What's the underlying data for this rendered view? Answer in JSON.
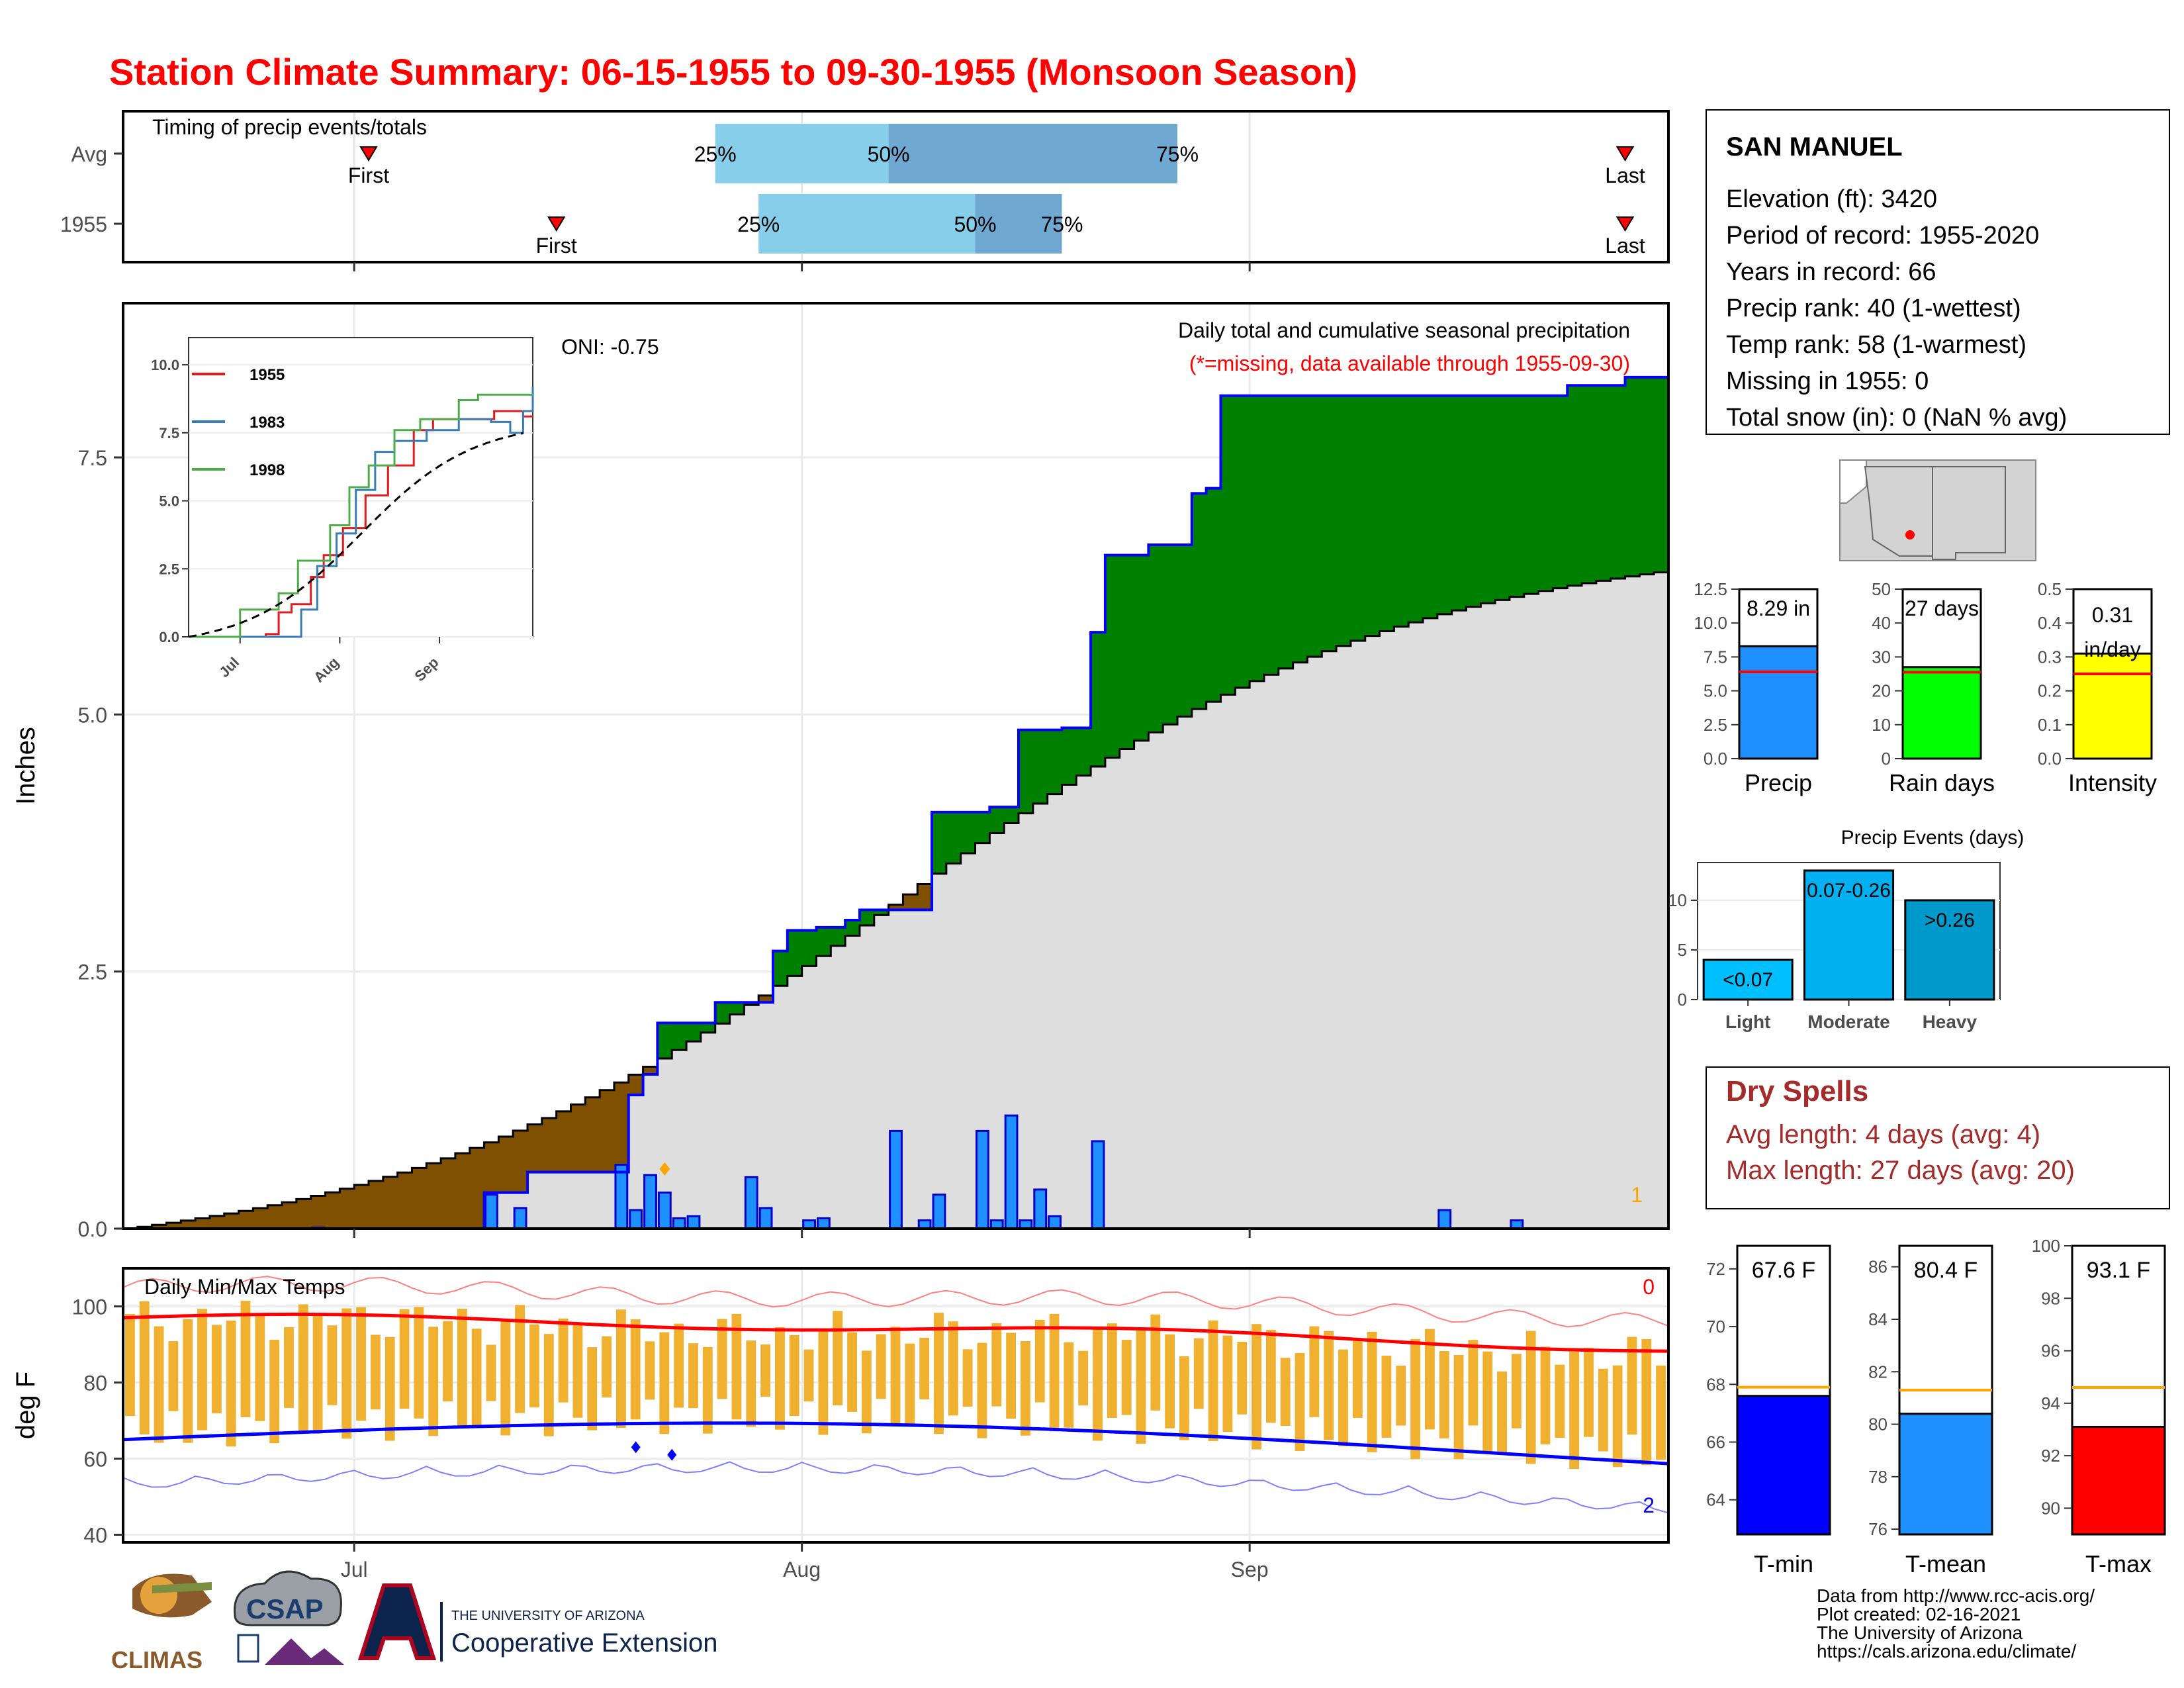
{
  "title": "Station Climate Summary: 06-15-1955 to 09-30-1955 (Monsoon Season)",
  "timing": {
    "label": "Timing of precip events/totals",
    "rows": [
      {
        "name": "Avg",
        "first_day": 17,
        "last_day": 104,
        "p25": 41,
        "p50": 53,
        "p75": 73
      },
      {
        "name": "1955",
        "first_day": 30,
        "last_day": 104,
        "p25": 44,
        "p50": 59,
        "p75": 65
      }
    ],
    "first_label": "First",
    "last_label": "Last",
    "p25_label": "25%",
    "p50_label": "50%",
    "p75_label": "75%"
  },
  "station": {
    "name": "SAN MANUEL",
    "lines": [
      "Elevation (ft): 3420",
      "Period of record: 1955-2020",
      "Years in record: 66",
      "Precip rank: 40 (1-wettest)",
      "Temp rank: 58 (1-warmest)",
      "Missing in 1955: 0",
      "Total snow (in): 0 (NaN % avg)"
    ]
  },
  "precip_panel": {
    "title": "Daily total and cumulative seasonal precipitation",
    "subtitle": "(*=missing, data available through 1955-09-30)",
    "oni": "ONI: -0.75",
    "ylabel": "Inches",
    "y_ticks": [
      "0.0",
      "2.5",
      "5.0",
      "7.5"
    ],
    "corner_count": "1",
    "colors": {
      "above": "#008000",
      "below": "#7f5000",
      "avg_fill": "#dedede",
      "bar": "#1e90ff"
    }
  },
  "inset": {
    "series": [
      {
        "name": "1955",
        "color": "#e41a1c"
      },
      {
        "name": "1983",
        "color": "#377eb8"
      },
      {
        "name": "1998",
        "color": "#4daf4a"
      }
    ],
    "y_ticks": [
      "0.0",
      "2.5",
      "5.0",
      "7.5",
      "10.0"
    ],
    "x_ticks": [
      "Jul",
      "Aug",
      "Sep"
    ]
  },
  "temp_panel": {
    "title": "Daily Min/Max Temps",
    "ylabel": "deg F",
    "y_ticks": [
      "40",
      "60",
      "80",
      "100"
    ],
    "count_max": "0",
    "count_min": "2"
  },
  "x_axis": {
    "ticks": [
      "Jul",
      "Aug",
      "Sep"
    ]
  },
  "gauges": {
    "precip": {
      "label": "Precip",
      "value_text": "8.29 in",
      "value": 8.29,
      "avg": 6.4,
      "ymax": 12.5,
      "ticks": [
        "0.0",
        "2.5",
        "5.0",
        "7.5",
        "10.0",
        "12.5"
      ],
      "color": "#1e90ff"
    },
    "rain_days": {
      "label": "Rain days",
      "value_text": "27 days",
      "value": 27,
      "avg": 25.5,
      "ymax": 50,
      "ticks": [
        "0",
        "10",
        "20",
        "30",
        "40",
        "50"
      ],
      "color": "#00ff00"
    },
    "intensity": {
      "label": "Intensity",
      "value_text": "0.31 in/day",
      "value": 0.31,
      "avg": 0.25,
      "ymax": 0.5,
      "ticks": [
        "0.0",
        "0.1",
        "0.2",
        "0.3",
        "0.4",
        "0.5"
      ],
      "color": "#ffff00"
    }
  },
  "precip_events": {
    "title": "Precip Events (days)",
    "categories": [
      "Light",
      "Moderate",
      "Heavy"
    ],
    "range_labels": [
      "<0.07",
      "0.07-0.26",
      ">0.26"
    ],
    "values": [
      4,
      13,
      10
    ],
    "y_ticks": [
      "0",
      "5",
      "10"
    ],
    "colors": [
      "#00bfff",
      "#00b0f0",
      "#0099cc"
    ]
  },
  "dry_spells": {
    "title": "Dry Spells",
    "avg_line": "Avg length: 4 days (avg: 4)",
    "max_line": "Max length: 27 days (avg: 20)"
  },
  "temp_gauges": {
    "tmin": {
      "label": "T-min",
      "value_text": "67.6 F",
      "value": 67.6,
      "avg": 67.9,
      "ymin": 62.8,
      "ymax": 72.8,
      "ticks": [
        "64",
        "66",
        "68",
        "70",
        "72"
      ],
      "color": "#0000ff"
    },
    "tmean": {
      "label": "T-mean",
      "value_text": "80.4 F",
      "value": 80.4,
      "avg": 81.3,
      "ymin": 75.8,
      "ymax": 86.8,
      "ticks": [
        "76",
        "78",
        "80",
        "82",
        "84",
        "86"
      ],
      "color": "#1e90ff"
    },
    "tmax": {
      "label": "T-max",
      "value_text": "93.1 F",
      "value": 93.1,
      "avg": 94.6,
      "ymin": 89.0,
      "ymax": 100.0,
      "ticks": [
        "90",
        "92",
        "94",
        "96",
        "98",
        "100"
      ],
      "color": "#ff0000"
    }
  },
  "footer": {
    "lines": [
      "Data from http://www.rcc-acis.org/",
      "Plot created: 02-16-2021",
      "The University of Arizona",
      "https://cals.arizona.edu/climate/"
    ],
    "logos": {
      "climas": "CLIMAS",
      "csap": "CSAP",
      "ua_small": "THE UNIVERSITY OF ARIZONA",
      "ua_big": "Cooperative Extension"
    }
  },
  "chart_data": [
    {
      "type": "area",
      "title": "Daily total and cumulative seasonal precipitation",
      "ylabel": "Inches",
      "x_start": "1955-06-15",
      "x_end": "1955-09-30",
      "ylim": [
        0,
        9.0
      ],
      "daily_precip": [
        {
          "date": "1955-06-28",
          "value": 0.01
        },
        {
          "date": "1955-07-10",
          "value": 0.33
        },
        {
          "date": "1955-07-12",
          "value": 0.2
        },
        {
          "date": "1955-07-19",
          "value": 0.62
        },
        {
          "date": "1955-07-20",
          "value": 0.18
        },
        {
          "date": "1955-07-21",
          "value": 0.52
        },
        {
          "date": "1955-07-22",
          "value": 0.35
        },
        {
          "date": "1955-07-23",
          "value": 0.1
        },
        {
          "date": "1955-07-24",
          "value": 0.12
        },
        {
          "date": "1955-07-28",
          "value": 0.5
        },
        {
          "date": "1955-07-29",
          "value": 0.2
        },
        {
          "date": "1955-08-01",
          "value": 0.08
        },
        {
          "date": "1955-08-02",
          "value": 0.1
        },
        {
          "date": "1955-08-07",
          "value": 0.95
        },
        {
          "date": "1955-08-09",
          "value": 0.08
        },
        {
          "date": "1955-08-10",
          "value": 0.33
        },
        {
          "date": "1955-08-13",
          "value": 0.95
        },
        {
          "date": "1955-08-14",
          "value": 0.08
        },
        {
          "date": "1955-08-15",
          "value": 1.1
        },
        {
          "date": "1955-08-16",
          "value": 0.08
        },
        {
          "date": "1955-08-17",
          "value": 0.38
        },
        {
          "date": "1955-08-18",
          "value": 0.12
        },
        {
          "date": "1955-08-21",
          "value": 0.85
        },
        {
          "date": "1955-09-14",
          "value": 0.18
        },
        {
          "date": "1955-09-19",
          "value": 0.08
        }
      ],
      "cumulative_1955_steps": [
        [
          0,
          0.0
        ],
        [
          25,
          0.35
        ],
        [
          28,
          0.55
        ],
        [
          34,
          0.55
        ],
        [
          35,
          1.3
        ],
        [
          36,
          1.5
        ],
        [
          37,
          2.0
        ],
        [
          40,
          2.0
        ],
        [
          41,
          2.2
        ],
        [
          43,
          2.2
        ],
        [
          45,
          2.7
        ],
        [
          46,
          2.9
        ],
        [
          47,
          2.9
        ],
        [
          48,
          2.93
        ],
        [
          50,
          3.0
        ],
        [
          51,
          3.1
        ],
        [
          56,
          4.05
        ],
        [
          60,
          4.1
        ],
        [
          62,
          4.85
        ],
        [
          65,
          4.87
        ],
        [
          67,
          5.8
        ],
        [
          68,
          6.55
        ],
        [
          71,
          6.65
        ],
        [
          74,
          7.15
        ],
        [
          75,
          7.2
        ],
        [
          76,
          8.1
        ],
        [
          99,
          8.1
        ],
        [
          100,
          8.2
        ],
        [
          104,
          8.28
        ],
        [
          107,
          8.29
        ]
      ],
      "average_cumulative_end": 6.4
    },
    {
      "type": "line",
      "title": "Daily Min/Max Temps",
      "ylabel": "deg F",
      "ylim": [
        38,
        110
      ],
      "avg_tmax_start": 97,
      "avg_tmax_end": 89,
      "avg_tmin_start": 65,
      "avg_tmin_end": 61
    }
  ]
}
